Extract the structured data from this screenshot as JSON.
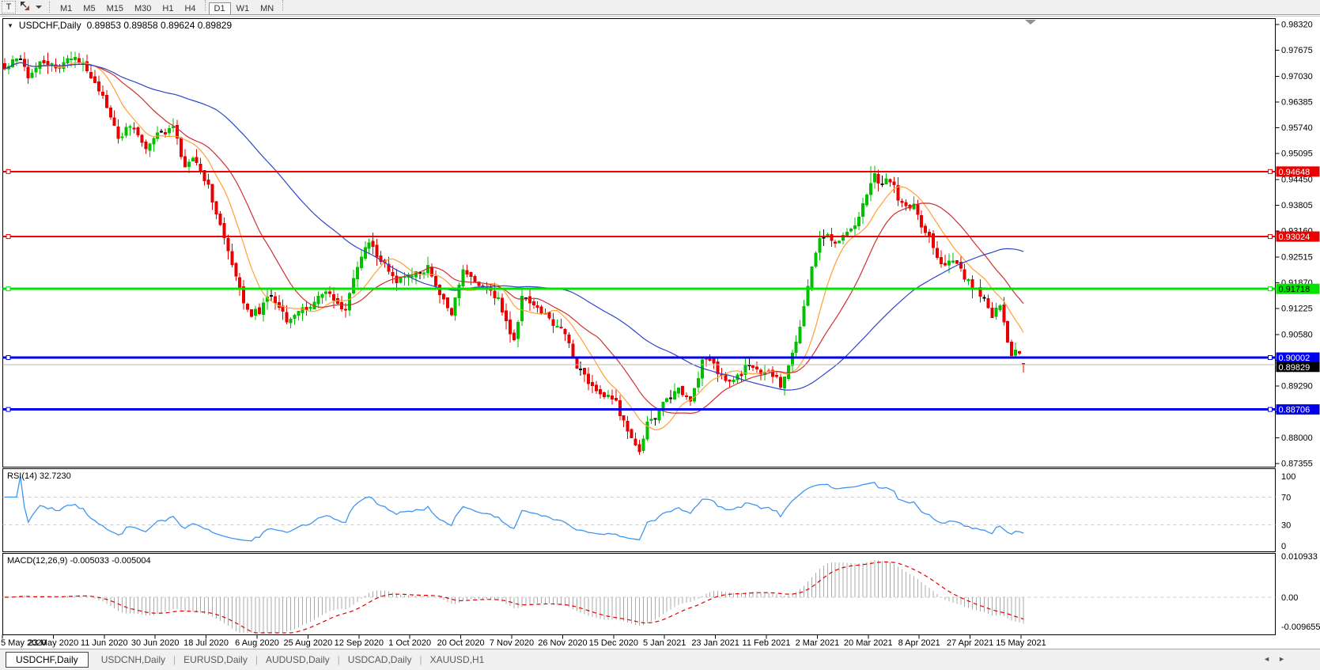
{
  "toolbar": {
    "text_tool": "T",
    "arrow_tool_icon": "arrow-objects-icon",
    "timeframes": [
      "M1",
      "M5",
      "M15",
      "M30",
      "H1",
      "H4",
      "D1",
      "W1",
      "MN"
    ],
    "active_timeframe": "D1"
  },
  "chart": {
    "symbol_period": "USDCHF,Daily",
    "quote_line": "0.89853 0.89858 0.89624 0.89829"
  },
  "price_axis": {
    "ticks": [
      "0.98320",
      "0.97675",
      "0.97030",
      "0.96385",
      "0.95740",
      "0.95095",
      "0.94450",
      "0.93805",
      "0.93160",
      "0.92515",
      "0.91870",
      "0.91225",
      "0.90580",
      "0.89935",
      "0.89290",
      "0.88645",
      "0.88000",
      "0.87355"
    ]
  },
  "hlines": [
    {
      "label": "0.94648",
      "value": 0.94648,
      "color": "#ee0000",
      "label_fg": "#ffffff",
      "width": 2
    },
    {
      "label": "0.93024",
      "value": 0.93024,
      "color": "#ee0000",
      "label_fg": "#ffffff",
      "width": 2
    },
    {
      "label": "0.91718",
      "value": 0.91718,
      "color": "#00e400",
      "label_fg": "#000000",
      "width": 3
    },
    {
      "label": "0.90002",
      "value": 0.90002,
      "color": "#0000ee",
      "label_fg": "#ffffff",
      "width": 3
    },
    {
      "label": "0.88706",
      "value": 0.88706,
      "color": "#0000ee",
      "label_fg": "#ffffff",
      "width": 3
    }
  ],
  "current_price": {
    "label": "0.89829",
    "value": 0.89829,
    "line_color": "#bbbbbb",
    "label_bg": "#000000",
    "label_fg": "#ffffff"
  },
  "dates": [
    "5 May 2020",
    "23 May 2020",
    "11 Jun 2020",
    "30 Jun 2020",
    "18 Jul 2020",
    "6 Aug 2020",
    "25 Aug 2020",
    "12 Sep 2020",
    "1 Oct 2020",
    "20 Oct 2020",
    "7 Nov 2020",
    "26 Nov 2020",
    "15 Dec 2020",
    "5 Jan 2021",
    "23 Jan 2021",
    "11 Feb 2021",
    "2 Mar 2021",
    "20 Mar 2021",
    "8 Apr 2021",
    "27 Apr 2021",
    "15 May 2021"
  ],
  "rsi_panel": {
    "label": "RSI(14) 32.7230",
    "scale_labels": [
      "100",
      "70",
      "30",
      "0"
    ],
    "line_color": "#3e96f0"
  },
  "macd_panel": {
    "label": "MACD(12,26,9) -0.005033 -0.005004",
    "axis_labels": [
      "0.010933",
      "0.00",
      "-0.009655"
    ],
    "histogram_color": "#ababab",
    "signal_color": "#e00000"
  },
  "tabs": {
    "items": [
      "USDCHF,Daily",
      "USDCNH,Daily",
      "EURUSD,Daily",
      "AUDUSD,Daily",
      "USDCAD,Daily",
      "XAUUSD,H1"
    ],
    "active": "USDCHF,Daily",
    "scroll_left": "◄",
    "scroll_right": "►"
  },
  "chart_data": {
    "type": "candlestick",
    "symbol": "USDCHF",
    "period": "Daily",
    "visible_range": {
      "first_date": "5 May 2020",
      "last_date": "15 May 2021",
      "price_min": 0.87355,
      "price_max": 0.9832
    },
    "last_bar": {
      "open": 0.89853,
      "high": 0.89858,
      "low": 0.89624,
      "close": 0.89829
    },
    "bars_total": 261,
    "bars_per_date_label": 13,
    "bull_color": "#00c000",
    "bear_color": "#e80000",
    "doji_color": "#000000",
    "close_path_anchors": [
      [
        0,
        0.972
      ],
      [
        2,
        0.9745
      ],
      [
        4,
        0.9752
      ],
      [
        6,
        0.9705
      ],
      [
        9,
        0.974
      ],
      [
        13,
        0.9722
      ],
      [
        16,
        0.9748
      ],
      [
        20,
        0.9738
      ],
      [
        23,
        0.969
      ],
      [
        26,
        0.9628
      ],
      [
        29,
        0.9545
      ],
      [
        32,
        0.9582
      ],
      [
        36,
        0.9525
      ],
      [
        39,
        0.9556
      ],
      [
        43,
        0.9576
      ],
      [
        46,
        0.947
      ],
      [
        48,
        0.9502
      ],
      [
        52,
        0.943
      ],
      [
        55,
        0.933
      ],
      [
        58,
        0.9228
      ],
      [
        61,
        0.9142
      ],
      [
        63,
        0.9108
      ],
      [
        65,
        0.9118
      ],
      [
        68,
        0.9158
      ],
      [
        72,
        0.9098
      ],
      [
        75,
        0.9112
      ],
      [
        78,
        0.9132
      ],
      [
        82,
        0.9162
      ],
      [
        87,
        0.9118
      ],
      [
        90,
        0.923
      ],
      [
        93,
        0.9288
      ],
      [
        96,
        0.9242
      ],
      [
        100,
        0.9192
      ],
      [
        104,
        0.9206
      ],
      [
        108,
        0.9222
      ],
      [
        112,
        0.9142
      ],
      [
        114,
        0.9108
      ],
      [
        117,
        0.9216
      ],
      [
        121,
        0.9182
      ],
      [
        126,
        0.9148
      ],
      [
        129,
        0.9062
      ],
      [
        130,
        0.9038
      ],
      [
        132,
        0.915
      ],
      [
        136,
        0.9126
      ],
      [
        140,
        0.9086
      ],
      [
        143,
        0.9062
      ],
      [
        146,
        0.8982
      ],
      [
        150,
        0.8928
      ],
      [
        153,
        0.8906
      ],
      [
        156,
        0.8888
      ],
      [
        158,
        0.8838
      ],
      [
        160,
        0.8792
      ],
      [
        162,
        0.8768
      ],
      [
        164,
        0.8832
      ],
      [
        167,
        0.8866
      ],
      [
        169,
        0.8896
      ],
      [
        172,
        0.8922
      ],
      [
        175,
        0.8892
      ],
      [
        178,
        0.8988
      ],
      [
        180,
        0.8996
      ],
      [
        183,
        0.8952
      ],
      [
        186,
        0.8936
      ],
      [
        190,
        0.8986
      ],
      [
        193,
        0.8962
      ],
      [
        196,
        0.8958
      ],
      [
        198,
        0.8932
      ],
      [
        200,
        0.8986
      ],
      [
        202,
        0.9032
      ],
      [
        204,
        0.9122
      ],
      [
        206,
        0.9232
      ],
      [
        208,
        0.9292
      ],
      [
        210,
        0.9312
      ],
      [
        212,
        0.9286
      ],
      [
        214,
        0.9302
      ],
      [
        216,
        0.9322
      ],
      [
        218,
        0.9352
      ],
      [
        220,
        0.9412
      ],
      [
        222,
        0.9455
      ],
      [
        224,
        0.9432
      ],
      [
        226,
        0.9446
      ],
      [
        228,
        0.9402
      ],
      [
        230,
        0.9372
      ],
      [
        232,
        0.9386
      ],
      [
        234,
        0.9332
      ],
      [
        236,
        0.9302
      ],
      [
        238,
        0.9252
      ],
      [
        240,
        0.9232
      ],
      [
        242,
        0.9242
      ],
      [
        244,
        0.9216
      ],
      [
        247,
        0.9176
      ],
      [
        250,
        0.9142
      ],
      [
        252,
        0.9106
      ],
      [
        254,
        0.9126
      ],
      [
        255,
        0.9088
      ],
      [
        256,
        0.9042
      ],
      [
        257,
        0.8998
      ],
      [
        258,
        0.9022
      ],
      [
        259,
        0.9006
      ],
      [
        260,
        0.89829
      ]
    ],
    "key_extremes": {
      "low_index": 162,
      "low_price": 0.8757,
      "high_index": 221,
      "high_price": 0.9478,
      "feb_touch_index": 180,
      "feb_touch_high": 0.9008
    },
    "horizontal_levels": [
      0.94648,
      0.93024,
      0.91718,
      0.90002,
      0.88706
    ],
    "moving_averages": [
      {
        "name": "ma-fast",
        "period": 10,
        "color": "#ffa033"
      },
      {
        "name": "ma-mid",
        "period": 21,
        "color": "#d03030"
      },
      {
        "name": "ma-slow",
        "period": 55,
        "color": "#2e45c8"
      }
    ],
    "rsi": {
      "period": 14,
      "current": 32.723,
      "levels": [
        70,
        30
      ],
      "range": [
        0,
        100
      ]
    },
    "macd": {
      "fast": 12,
      "slow": 26,
      "signal": 9,
      "current_main": -0.005033,
      "current_signal": -0.005004,
      "scale_max": 0.010933,
      "scale_min": -0.009655
    }
  }
}
